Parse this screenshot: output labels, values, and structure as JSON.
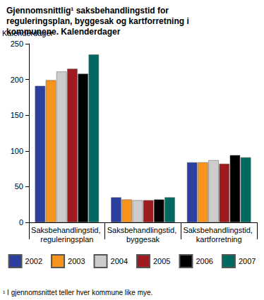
{
  "chart_data": {
    "type": "bar",
    "title": "Gjennomsnittlig¹ saksbehandlingstid for reguleringsplan, byggesak og kartforretning i kommunene. Kalenderdager",
    "y_label": "Kalenderdager",
    "footnote": "¹ I gjennomsnittet teller hver kommune like mye.",
    "categories": [
      "Saksbehandlingstid, reguleringsplan",
      "Saksbehandlingstid, byggesak",
      "Saksbehandlingstid, kartforretning"
    ],
    "series": [
      {
        "name": "2002",
        "color": "#2b3f9e",
        "values": [
          191,
          35,
          84
        ]
      },
      {
        "name": "2003",
        "color": "#f7941d",
        "values": [
          199,
          32,
          84
        ]
      },
      {
        "name": "2004",
        "color": "#cccccc",
        "values": [
          211,
          31,
          87
        ]
      },
      {
        "name": "2005",
        "color": "#9e1b20",
        "values": [
          215,
          31,
          82
        ]
      },
      {
        "name": "2006",
        "color": "#000000",
        "values": [
          208,
          32,
          94
        ]
      },
      {
        "name": "2007",
        "color": "#006a60",
        "values": [
          235,
          35,
          91
        ]
      }
    ],
    "ylim": [
      0,
      250
    ],
    "yticks": [
      0,
      50,
      100,
      150,
      200,
      250
    ],
    "grid": false,
    "legend": "bottom"
  }
}
